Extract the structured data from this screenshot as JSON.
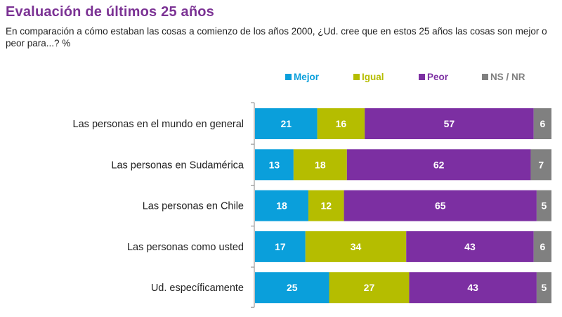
{
  "header": {
    "title": "Evaluación de últimos 25 años",
    "subtitle": "En comparación a cómo estaban las cosas a comienzo de los años 2000, ¿Ud. cree que en estos 25 años las cosas son mejor o peor para...? %"
  },
  "chart_data": {
    "type": "bar",
    "orientation": "horizontal",
    "stacked": true,
    "title": "Evaluación de últimos 25 años",
    "subtitle": "En comparación a cómo estaban las cosas a comienzo de los años 2000, ¿Ud. cree que en estos 25 años las cosas son mejor o peor para...? %",
    "xlabel": "",
    "ylabel": "",
    "xlim": [
      0,
      100
    ],
    "grid": false,
    "legend_position": "top-right",
    "categories": [
      "Las personas en el mundo en general",
      "Las personas en Sudamérica",
      "Las personas en Chile",
      "Las personas como usted",
      "Ud. específicamente"
    ],
    "series": [
      {
        "name": "Mejor",
        "color": "#0a9fdb",
        "values": [
          21,
          13,
          18,
          17,
          25
        ]
      },
      {
        "name": "Igual",
        "color": "#b5bd00",
        "values": [
          16,
          18,
          12,
          34,
          27
        ]
      },
      {
        "name": "Peor",
        "color": "#7c2fa2",
        "values": [
          57,
          62,
          65,
          43,
          43
        ]
      },
      {
        "name": "NS / NR",
        "color": "#808080",
        "values": [
          6,
          7,
          5,
          6,
          5
        ]
      }
    ]
  }
}
